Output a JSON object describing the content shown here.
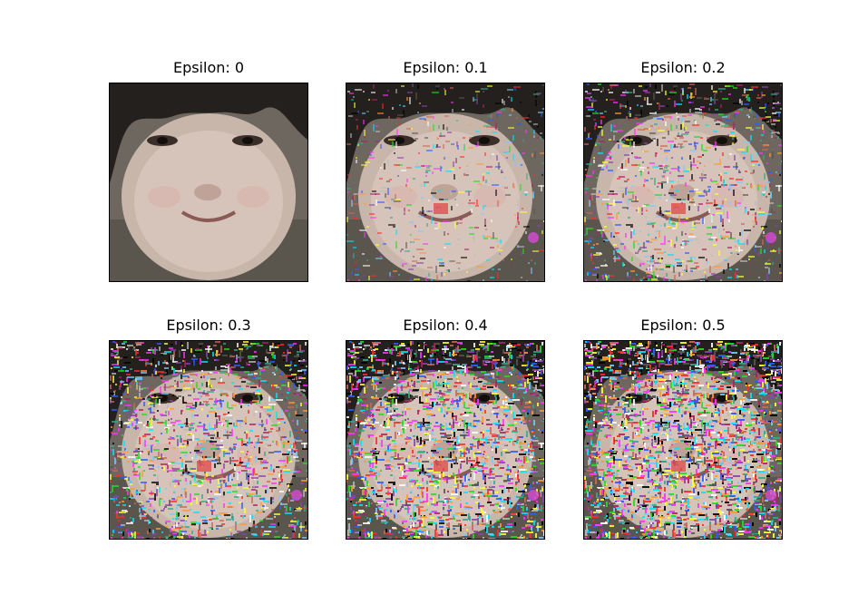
{
  "figure": {
    "panels": [
      {
        "title": "Epsilon: 0",
        "epsilon": 0
      },
      {
        "title": "Epsilon: 0.1",
        "epsilon": 0.1
      },
      {
        "title": "Epsilon: 0.2",
        "epsilon": 0.2
      },
      {
        "title": "Epsilon: 0.3",
        "epsilon": 0.3
      },
      {
        "title": "Epsilon: 0.4",
        "epsilon": 0.4
      },
      {
        "title": "Epsilon: 0.5",
        "epsilon": 0.5
      }
    ]
  }
}
